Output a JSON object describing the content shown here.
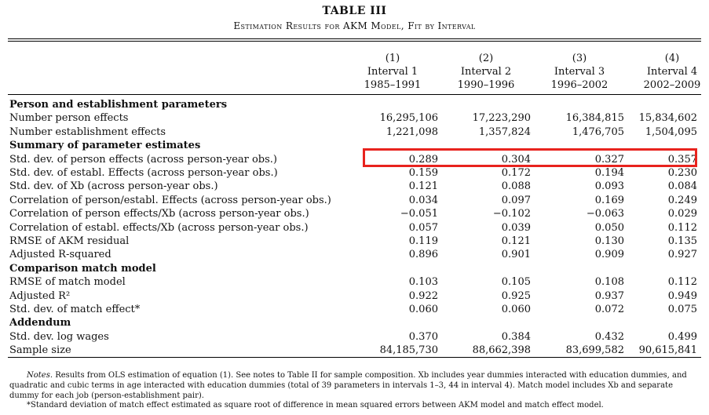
{
  "table": {
    "number": "TABLE III",
    "caption": "Estimation Results for AKM Model, Fit by Interval",
    "columns": [
      {
        "num": "(1)",
        "name": "Interval 1",
        "years": "1985–1991"
      },
      {
        "num": "(2)",
        "name": "Interval 2",
        "years": "1990–1996"
      },
      {
        "num": "(3)",
        "name": "Interval 3",
        "years": "1996–2002"
      },
      {
        "num": "(4)",
        "name": "Interval 4",
        "years": "2002–2009"
      }
    ],
    "rows": [
      {
        "label": "Person and establishment parameters",
        "section": true,
        "values": []
      },
      {
        "label": "Number person effects",
        "values": [
          "16,295,106",
          "17,223,290",
          "16,384,815",
          "15,834,602"
        ]
      },
      {
        "label": "Number establishment effects",
        "values": [
          "1,221,098",
          "1,357,824",
          "1,476,705",
          "1,504,095"
        ]
      },
      {
        "label": "Summary of parameter estimates",
        "section": true,
        "values": []
      },
      {
        "label": "Std. dev. of person effects (across person-year obs.)",
        "values": [
          "0.289",
          "0.304",
          "0.327",
          "0.357"
        ],
        "highlighted": true
      },
      {
        "label": "Std. dev. of establ. Effects (across person-year obs.)",
        "values": [
          "0.159",
          "0.172",
          "0.194",
          "0.230"
        ]
      },
      {
        "label": "Std. dev. of Xb (across person-year obs.)",
        "values": [
          "0.121",
          "0.088",
          "0.093",
          "0.084"
        ]
      },
      {
        "label": "Correlation of person/establ. Effects (across person-year obs.)",
        "values": [
          "0.034",
          "0.097",
          "0.169",
          "0.249"
        ]
      },
      {
        "label": "Correlation of person effects/Xb (across person-year obs.)",
        "values": [
          "−0.051",
          "−0.102",
          "−0.063",
          "0.029"
        ]
      },
      {
        "label": "Correlation of establ. effects/Xb (across person-year obs.)",
        "values": [
          "0.057",
          "0.039",
          "0.050",
          "0.112"
        ]
      },
      {
        "label": "RMSE of AKM residual",
        "values": [
          "0.119",
          "0.121",
          "0.130",
          "0.135"
        ]
      },
      {
        "label": "Adjusted R-squared",
        "values": [
          "0.896",
          "0.901",
          "0.909",
          "0.927"
        ]
      },
      {
        "label": "Comparison match model",
        "section": true,
        "values": []
      },
      {
        "label": "RMSE of match model",
        "values": [
          "0.103",
          "0.105",
          "0.108",
          "0.112"
        ]
      },
      {
        "label": "Adjusted R²",
        "values": [
          "0.922",
          "0.925",
          "0.937",
          "0.949"
        ]
      },
      {
        "label": "Std. dev. of match effect*",
        "values": [
          "0.060",
          "0.060",
          "0.072",
          "0.075"
        ]
      },
      {
        "label": "Addendum",
        "section": true,
        "values": []
      },
      {
        "label": "Std. dev. log wages",
        "values": [
          "0.370",
          "0.384",
          "0.432",
          "0.499"
        ]
      },
      {
        "label": "Sample size",
        "values": [
          "84,185,730",
          "88,662,398",
          "83,699,582",
          "90,615,841"
        ]
      }
    ],
    "notes_label": "Notes.",
    "notes_text": "Results from OLS estimation of equation (1). See notes to Table II for sample composition. Xb includes year dummies interacted with education dummies, and quadratic and cubic terms in age interacted with education dummies (total of 39 parameters in intervals 1–3, 44 in interval 4). Match model includes Xb and separate dummy for each job (person-establishment pair).",
    "footnote": "*Standard deviation of match effect estimated as square root of difference in mean squared errors between AKM model and match effect model."
  },
  "colors": {
    "highlight_border": "#e8231e",
    "text": "#111111"
  }
}
